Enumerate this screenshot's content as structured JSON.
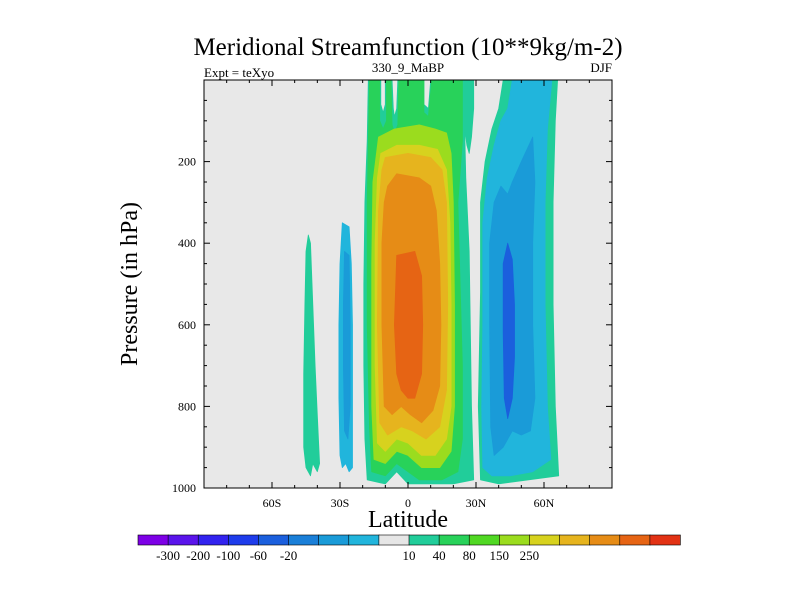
{
  "chart_data": {
    "type": "heatmap",
    "title": "Meridional Streamfunction (10**9kg/m-2)",
    "left_label": "Expt = teXyo",
    "center_label": "330_9_MaBP",
    "right_label": "DJF",
    "xlabel": "Latitude",
    "ylabel": "Pressure (in hPa)",
    "xlim": [
      -90,
      90
    ],
    "ylim": [
      1000,
      0
    ],
    "x_ticks": [
      {
        "value": -60,
        "label": "60S"
      },
      {
        "value": -30,
        "label": "30S"
      },
      {
        "value": 0,
        "label": "0"
      },
      {
        "value": 30,
        "label": "30N"
      },
      {
        "value": 60,
        "label": "60N"
      }
    ],
    "y_ticks": [
      {
        "value": 200,
        "label": "200"
      },
      {
        "value": 400,
        "label": "400"
      },
      {
        "value": 600,
        "label": "600"
      },
      {
        "value": 800,
        "label": "800"
      },
      {
        "value": 1000,
        "label": "1000"
      }
    ],
    "background_color": "#e8e8e8",
    "colorbar": {
      "colors": [
        "#7d00e6",
        "#5a14eb",
        "#3223ef",
        "#1e3ceb",
        "#1b5fdd",
        "#1a7fd8",
        "#1a9bd8",
        "#21b5dc",
        "#e6e6e6",
        "#21cd9a",
        "#28d25a",
        "#50d823",
        "#9bdc1e",
        "#d7d21e",
        "#e6b41e",
        "#e68c16",
        "#e66414",
        "#e23214"
      ],
      "labels": [
        "-300",
        "-200",
        "-100",
        "-60",
        "-20",
        "10",
        "40",
        "80",
        "150",
        "250"
      ]
    },
    "regions": [
      {
        "level": 10,
        "color": "#21cd9a",
        "points": [
          [
            -44,
            0.38
          ],
          [
            -43,
            0.4
          ],
          [
            -42,
            0.55
          ],
          [
            -41,
            0.7
          ],
          [
            -40,
            0.82
          ],
          [
            -39,
            0.94
          ],
          [
            -40,
            0.96
          ],
          [
            -42,
            0.94
          ],
          [
            -43,
            0.97
          ],
          [
            -45,
            0.95
          ],
          [
            -46,
            0.9
          ],
          [
            -46,
            0.72
          ],
          [
            -45.5,
            0.55
          ],
          [
            -45,
            0.42
          ]
        ]
      },
      {
        "level": -20,
        "color": "#21b5dc",
        "points": [
          [
            -29,
            0.35
          ],
          [
            -26,
            0.36
          ],
          [
            -25,
            0.45
          ],
          [
            -24.5,
            0.6
          ],
          [
            -24.5,
            0.78
          ],
          [
            -24.5,
            0.95
          ],
          [
            -26,
            0.96
          ],
          [
            -27.5,
            0.94
          ],
          [
            -29,
            0.95
          ],
          [
            -30,
            0.92
          ],
          [
            -30.5,
            0.78
          ],
          [
            -30.5,
            0.6
          ],
          [
            -30,
            0.45
          ]
        ]
      },
      {
        "level": -60,
        "color": "#1a9bd8",
        "points": [
          [
            -28,
            0.42
          ],
          [
            -26,
            0.43
          ],
          [
            -25.5,
            0.6
          ],
          [
            -25.5,
            0.8
          ],
          [
            -26.5,
            0.88
          ],
          [
            -28,
            0.86
          ],
          [
            -28.5,
            0.7
          ],
          [
            -28.5,
            0.55
          ]
        ]
      },
      {
        "level": 10,
        "color": "#21cd9a",
        "points": [
          [
            -17.5,
            0.0
          ],
          [
            -12,
            0.0
          ],
          [
            -12,
            0.06
          ],
          [
            -11,
            0.08
          ],
          [
            -10,
            0.06
          ],
          [
            -10,
            0.0
          ],
          [
            -7,
            0.0
          ],
          [
            -6.5,
            0.07
          ],
          [
            -6,
            0.09
          ],
          [
            -5,
            0.07
          ],
          [
            -4.5,
            0.0
          ],
          [
            7,
            0.0
          ],
          [
            7,
            0.06
          ],
          [
            9,
            0.07
          ],
          [
            10,
            0.0
          ],
          [
            29,
            0.0
          ],
          [
            29,
            0.07
          ],
          [
            28,
            0.14
          ],
          [
            27,
            0.18
          ],
          [
            26,
            0.16
          ],
          [
            25,
            0.12
          ],
          [
            25.5,
            0.24
          ],
          [
            27,
            0.42
          ],
          [
            27.5,
            0.6
          ],
          [
            28,
            0.8
          ],
          [
            29,
            0.98
          ],
          [
            20,
            0.99
          ],
          [
            10,
            0.99
          ],
          [
            0,
            0.99
          ],
          [
            -5,
            0.96
          ],
          [
            -10,
            0.99
          ],
          [
            -18,
            0.98
          ],
          [
            -19,
            0.88
          ],
          [
            -19.5,
            0.7
          ],
          [
            -19.5,
            0.5
          ],
          [
            -19,
            0.3
          ],
          [
            -18,
            0.15
          ]
        ]
      },
      {
        "level": 40,
        "color": "#28d25a",
        "points": [
          [
            -17,
            0.0
          ],
          [
            -12.5,
            0.0
          ],
          [
            -12.5,
            0.1
          ],
          [
            -11,
            0.12
          ],
          [
            -9.5,
            0.1
          ],
          [
            -9.5,
            0.0
          ],
          [
            -7.5,
            0.0
          ],
          [
            -7,
            0.11
          ],
          [
            -6,
            0.13
          ],
          [
            -4.5,
            0.11
          ],
          [
            -4,
            0.0
          ],
          [
            7,
            0.0
          ],
          [
            7,
            0.08
          ],
          [
            9,
            0.09
          ],
          [
            10.5,
            0.0
          ],
          [
            24,
            0.0
          ],
          [
            24,
            0.15
          ],
          [
            22,
            0.3
          ],
          [
            23,
            0.5
          ],
          [
            24,
            0.7
          ],
          [
            24,
            0.88
          ],
          [
            22,
            0.96
          ],
          [
            15,
            0.98
          ],
          [
            5,
            0.98
          ],
          [
            0,
            0.96
          ],
          [
            -5,
            0.94
          ],
          [
            -10,
            0.97
          ],
          [
            -16,
            0.96
          ],
          [
            -17,
            0.85
          ],
          [
            -18,
            0.6
          ],
          [
            -18,
            0.3
          ]
        ]
      },
      {
        "level": 80,
        "color": "#9bdc1e",
        "points": [
          [
            -13,
            0.14
          ],
          [
            -6,
            0.12
          ],
          [
            5,
            0.11
          ],
          [
            12,
            0.12
          ],
          [
            17,
            0.13
          ],
          [
            19,
            0.18
          ],
          [
            20,
            0.3
          ],
          [
            20.5,
            0.55
          ],
          [
            20.5,
            0.8
          ],
          [
            19,
            0.91
          ],
          [
            14,
            0.95
          ],
          [
            6,
            0.95
          ],
          [
            0,
            0.92
          ],
          [
            -5,
            0.91
          ],
          [
            -10,
            0.94
          ],
          [
            -15,
            0.93
          ],
          [
            -16,
            0.8
          ],
          [
            -16,
            0.45
          ],
          [
            -15.5,
            0.25
          ]
        ]
      },
      {
        "level": 150,
        "color": "#d7d21e",
        "points": [
          [
            -12,
            0.18
          ],
          [
            -5,
            0.16
          ],
          [
            5,
            0.16
          ],
          [
            13,
            0.17
          ],
          [
            17,
            0.22
          ],
          [
            18.5,
            0.35
          ],
          [
            19,
            0.55
          ],
          [
            19,
            0.8
          ],
          [
            17,
            0.88
          ],
          [
            12,
            0.92
          ],
          [
            6,
            0.92
          ],
          [
            0,
            0.89
          ],
          [
            -5,
            0.88
          ],
          [
            -10,
            0.91
          ],
          [
            -13.5,
            0.89
          ],
          [
            -14.5,
            0.7
          ],
          [
            -14.5,
            0.4
          ],
          [
            -13.5,
            0.24
          ]
        ]
      },
      {
        "level": 200,
        "color": "#e6b41e",
        "points": [
          [
            -10,
            0.19
          ],
          [
            0,
            0.18
          ],
          [
            10,
            0.19
          ],
          [
            15,
            0.22
          ],
          [
            17,
            0.3
          ],
          [
            17.5,
            0.55
          ],
          [
            17,
            0.76
          ],
          [
            14,
            0.85
          ],
          [
            8,
            0.88
          ],
          [
            2,
            0.86
          ],
          [
            -3,
            0.85
          ],
          [
            -9,
            0.87
          ],
          [
            -12.5,
            0.84
          ],
          [
            -13.5,
            0.6
          ],
          [
            -13,
            0.32
          ],
          [
            -11.5,
            0.22
          ]
        ]
      },
      {
        "level": 250,
        "color": "#e68c16",
        "points": [
          [
            -9,
            0.26
          ],
          [
            -5,
            0.23
          ],
          [
            5,
            0.24
          ],
          [
            10,
            0.26
          ],
          [
            12.5,
            0.32
          ],
          [
            14,
            0.45
          ],
          [
            14.5,
            0.6
          ],
          [
            14,
            0.75
          ],
          [
            11,
            0.81
          ],
          [
            6,
            0.84
          ],
          [
            1,
            0.82
          ],
          [
            -3,
            0.8
          ],
          [
            -7,
            0.82
          ],
          [
            -10.5,
            0.8
          ],
          [
            -11.5,
            0.6
          ],
          [
            -11.5,
            0.4
          ],
          [
            -10.5,
            0.3
          ]
        ]
      },
      {
        "level": 350,
        "color": "#e66414",
        "points": [
          [
            -5,
            0.43
          ],
          [
            3,
            0.42
          ],
          [
            6,
            0.48
          ],
          [
            6.5,
            0.6
          ],
          [
            6,
            0.72
          ],
          [
            3,
            0.78
          ],
          [
            0,
            0.78
          ],
          [
            -3,
            0.76
          ],
          [
            -5,
            0.72
          ],
          [
            -6,
            0.6
          ]
        ]
      },
      {
        "level": 10,
        "color": "#21cd9a",
        "points": [
          [
            32,
            0.52
          ],
          [
            32,
            0.3
          ],
          [
            34,
            0.2
          ],
          [
            37,
            0.12
          ],
          [
            40,
            0.07
          ],
          [
            42,
            0.0
          ],
          [
            47,
            0.0
          ],
          [
            47,
            0.04
          ],
          [
            49,
            0.05
          ],
          [
            50,
            0.0
          ],
          [
            66,
            0.0
          ],
          [
            65,
            0.1
          ],
          [
            64,
            0.3
          ],
          [
            64,
            0.55
          ],
          [
            65,
            0.8
          ],
          [
            66.5,
            0.97
          ],
          [
            40,
            0.99
          ],
          [
            32,
            0.98
          ],
          [
            31,
            0.8
          ]
        ]
      },
      {
        "level": -20,
        "color": "#21b5dc",
        "points": [
          [
            33,
            0.6
          ],
          [
            33,
            0.35
          ],
          [
            35,
            0.24
          ],
          [
            38,
            0.16
          ],
          [
            41,
            0.1
          ],
          [
            44,
            0.07
          ],
          [
            46,
            0.0
          ],
          [
            63.5,
            0.0
          ],
          [
            61.5,
            0.12
          ],
          [
            60.5,
            0.3
          ],
          [
            60.5,
            0.55
          ],
          [
            61.5,
            0.8
          ],
          [
            63,
            0.93
          ],
          [
            55,
            0.96
          ],
          [
            45,
            0.97
          ],
          [
            37,
            0.97
          ],
          [
            33,
            0.95
          ],
          [
            32.5,
            0.8
          ]
        ]
      },
      {
        "level": -60,
        "color": "#1a9bd8",
        "points": [
          [
            36,
            0.6
          ],
          [
            36,
            0.4
          ],
          [
            38,
            0.3
          ],
          [
            41,
            0.26
          ],
          [
            44,
            0.28
          ],
          [
            46,
            0.25
          ],
          [
            50,
            0.2
          ],
          [
            55,
            0.14
          ],
          [
            56,
            0.25
          ],
          [
            55,
            0.4
          ],
          [
            55,
            0.6
          ],
          [
            56,
            0.78
          ],
          [
            54,
            0.86
          ],
          [
            50,
            0.87
          ],
          [
            46,
            0.86
          ],
          [
            42,
            0.9
          ],
          [
            38,
            0.92
          ],
          [
            36.5,
            0.85
          ]
        ]
      },
      {
        "level": -100,
        "color": "#1b5fdd",
        "points": [
          [
            42,
            0.45
          ],
          [
            44,
            0.4
          ],
          [
            46,
            0.44
          ],
          [
            47,
            0.55
          ],
          [
            47,
            0.68
          ],
          [
            46,
            0.78
          ],
          [
            44,
            0.83
          ],
          [
            42.5,
            0.78
          ],
          [
            42,
            0.62
          ]
        ]
      }
    ]
  }
}
